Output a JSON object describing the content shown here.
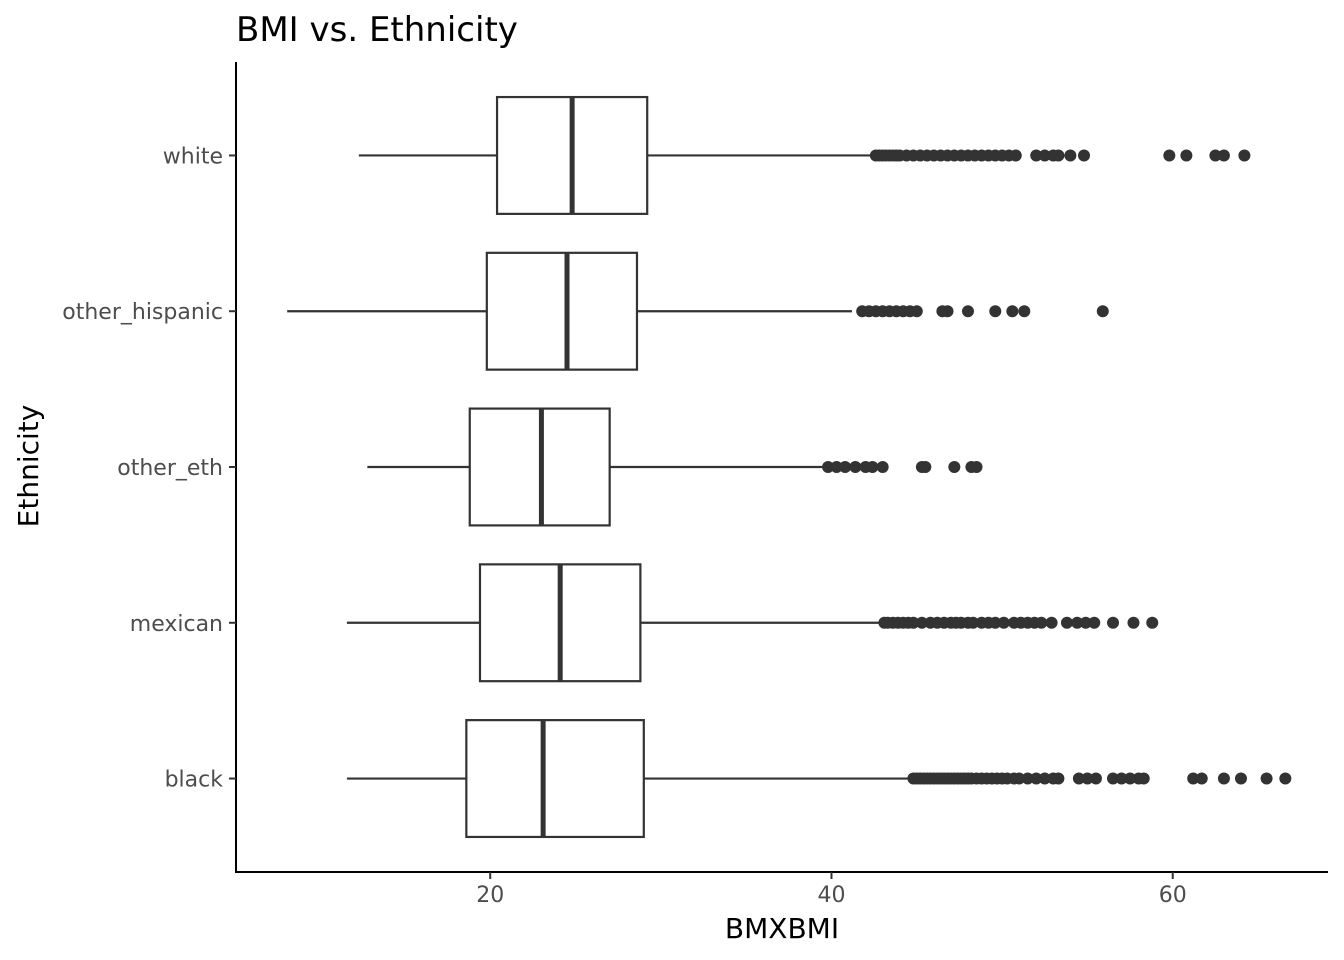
{
  "chart_data": {
    "type": "boxplot",
    "orientation": "horizontal",
    "title": "BMI vs. Ethnicity",
    "xlabel": "BMXBMI",
    "ylabel": "Ethnicity",
    "xlim": [
      5.1,
      69.1
    ],
    "xticks": [
      20,
      40,
      60
    ],
    "grid": false,
    "categories": [
      "black",
      "mexican",
      "other_eth",
      "other_hispanic",
      "white"
    ],
    "boxes": [
      {
        "name": "black",
        "whisker_low": 11.6,
        "q1": 18.6,
        "median": 23.1,
        "q3": 29.0,
        "whisker_high": 44.6,
        "outliers": [
          44.8,
          45.0,
          45.2,
          45.4,
          45.6,
          45.8,
          46.0,
          46.2,
          46.4,
          46.6,
          46.8,
          47.0,
          47.2,
          47.4,
          47.6,
          47.8,
          48.0,
          48.2,
          48.5,
          48.8,
          49.1,
          49.4,
          49.7,
          50.0,
          50.3,
          50.7,
          51.0,
          51.5,
          52.0,
          52.5,
          53.0,
          53.3,
          54.5,
          55.0,
          55.5,
          56.5,
          57.0,
          57.5,
          58.0,
          58.3,
          61.2,
          61.7,
          63.0,
          64.0,
          65.5,
          66.6
        ]
      },
      {
        "name": "mexican",
        "whisker_low": 11.6,
        "q1": 19.4,
        "median": 24.1,
        "q3": 28.8,
        "whisker_high": 42.9,
        "outliers": [
          43.1,
          43.3,
          43.6,
          43.9,
          44.2,
          44.5,
          44.8,
          45.3,
          45.8,
          46.2,
          46.6,
          47.0,
          47.3,
          47.6,
          48.0,
          48.3,
          48.8,
          49.2,
          49.6,
          50.1,
          50.7,
          51.1,
          51.5,
          51.9,
          52.3,
          52.9,
          53.8,
          54.4,
          54.9,
          55.4,
          56.5,
          57.7,
          58.8
        ]
      },
      {
        "name": "other_eth",
        "whisker_low": 12.8,
        "q1": 18.8,
        "median": 23.0,
        "q3": 27.0,
        "whisker_high": 39.6,
        "outliers": [
          39.8,
          40.3,
          40.8,
          41.4,
          42.0,
          42.4,
          43.0,
          45.3,
          45.5,
          47.2,
          48.2,
          48.5
        ]
      },
      {
        "name": "other_hispanic",
        "whisker_low": 8.1,
        "q1": 19.8,
        "median": 24.5,
        "q3": 28.6,
        "whisker_high": 41.2,
        "outliers": [
          41.8,
          42.2,
          42.6,
          43.0,
          43.4,
          43.8,
          44.2,
          44.6,
          45.0,
          46.5,
          46.8,
          48.0,
          49.6,
          50.6,
          51.3,
          55.9
        ]
      },
      {
        "name": "white",
        "whisker_low": 12.3,
        "q1": 20.4,
        "median": 24.8,
        "q3": 29.2,
        "whisker_high": 42.4,
        "outliers": [
          42.6,
          42.8,
          43.0,
          43.2,
          43.4,
          43.6,
          43.8,
          44.0,
          44.4,
          44.8,
          45.2,
          45.6,
          46.0,
          46.4,
          46.8,
          47.2,
          47.6,
          48.0,
          48.4,
          48.8,
          49.2,
          49.6,
          50.0,
          50.4,
          50.8,
          52.0,
          52.5,
          53.0,
          53.3,
          54.0,
          54.8,
          59.8,
          60.8,
          62.5,
          63.0,
          64.2
        ]
      }
    ]
  }
}
